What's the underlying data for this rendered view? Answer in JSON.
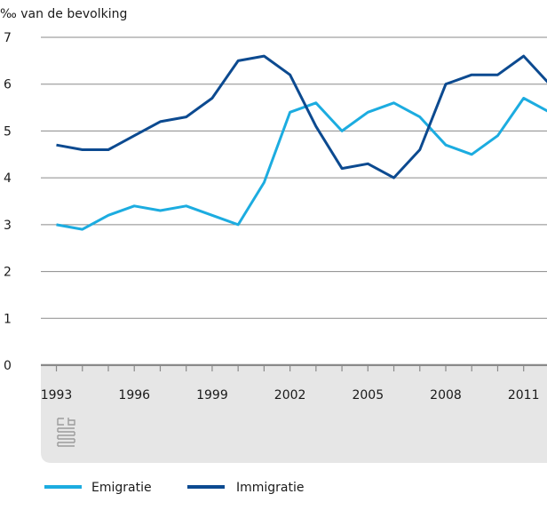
{
  "colors": {
    "emigratie": "#1cace0",
    "immigratie": "#0c4a90",
    "grid": "#8a8a8a",
    "baseline": "#8a8a8a",
    "footer_band": "#e6e6e6",
    "logo": "#9c9c9c"
  },
  "logo": {
    "icon": "cbs-logo-icon"
  },
  "chart_data": {
    "type": "line",
    "ylabel": "‰ van de bevolking",
    "ylim": [
      0,
      7
    ],
    "yticks": [
      "0",
      "1",
      "2",
      "3",
      "4",
      "5",
      "6",
      "7"
    ],
    "xlim": [
      1992.4,
      2011.9
    ],
    "xtick_labels": [
      {
        "year": 1993,
        "label": "1993"
      },
      {
        "year": 1996,
        "label": "1996"
      },
      {
        "year": 1999,
        "label": "1999"
      },
      {
        "year": 2002,
        "label": "2002"
      },
      {
        "year": 2005,
        "label": "2005"
      },
      {
        "year": 2008,
        "label": "2008"
      },
      {
        "year": 2011,
        "label": "2011"
      }
    ],
    "grid": true,
    "legend_position": "bottom",
    "x": [
      1993,
      1994,
      1995,
      1996,
      1997,
      1998,
      1999,
      2000,
      2001,
      2002,
      2003,
      2004,
      2005,
      2006,
      2007,
      2008,
      2009,
      2010,
      2011,
      2012
    ],
    "series": [
      {
        "name": "Emigratie",
        "color_key": "emigratie",
        "values": [
          3.0,
          2.9,
          3.2,
          3.4,
          3.3,
          3.4,
          3.2,
          3.0,
          3.9,
          5.4,
          5.6,
          5.0,
          5.4,
          5.6,
          5.3,
          4.7,
          4.5,
          4.9,
          5.7,
          5.4
        ]
      },
      {
        "name": "Immigratie",
        "color_key": "immigratie",
        "values": [
          4.7,
          4.6,
          4.6,
          4.9,
          5.2,
          5.3,
          5.7,
          6.5,
          6.6,
          6.2,
          5.1,
          4.2,
          4.3,
          4.0,
          4.6,
          6.0,
          6.2,
          6.2,
          6.6,
          6.0
        ]
      }
    ]
  }
}
